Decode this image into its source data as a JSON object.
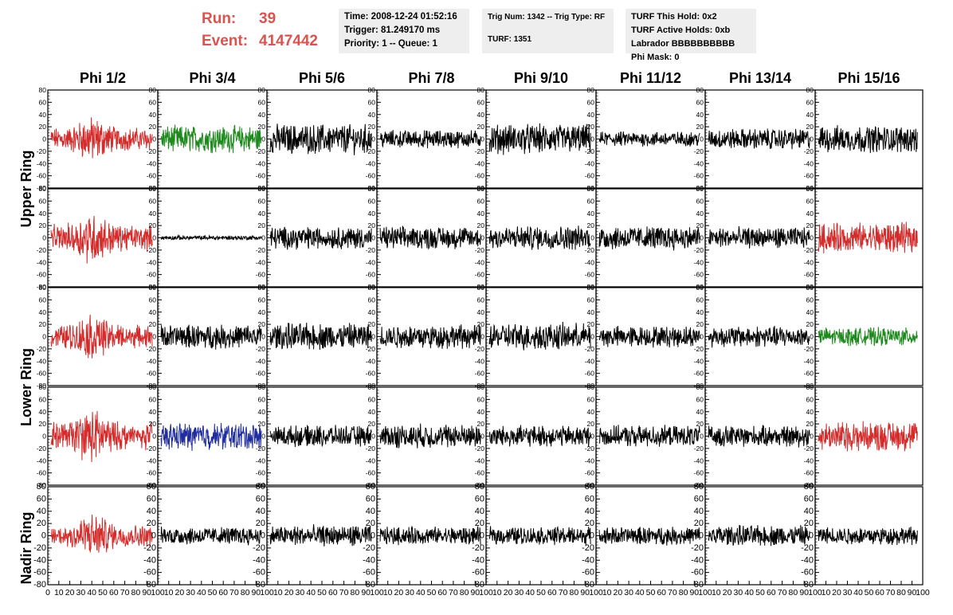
{
  "header": {
    "run_label": "Run:",
    "run_value": "39",
    "event_label": "Event:",
    "event_value": "4147442",
    "time": "Time: 2008-12-24 01:52:16",
    "trigger": "Trigger: 81.249170 ms",
    "priority": "Priority: 1 -- Queue: 1",
    "trig_num": "Trig Num: 1342 -- Trig Type: RF",
    "turf": "TURF: 1351",
    "turf_hold": "TURF This Hold: 0x2",
    "turf_active": "TURF Active Holds: 0xb",
    "labrador": "Labrador BBBBBBBBBB",
    "phi_mask": "Phi Mask: 0"
  },
  "colors": {
    "red": "#d42b2b",
    "green": "#1e8a1e",
    "blue": "#1f2d9e",
    "black": "#000000",
    "header_text": "#d9534f",
    "box_bg": "#eeeeee"
  },
  "chart_data": {
    "type": "line",
    "columns": [
      "Phi 1/2",
      "Phi 3/4",
      "Phi 5/6",
      "Phi 7/8",
      "Phi 9/10",
      "Phi 11/12",
      "Phi 13/14",
      "Phi 15/16"
    ],
    "rows": [
      "Upper Ring",
      "",
      "Lower Ring",
      "",
      "Nadir Ring"
    ],
    "ylim": [
      -80,
      80
    ],
    "yticks": [
      -80,
      -60,
      -40,
      -20,
      0,
      20,
      40,
      60,
      80
    ],
    "xlim": [
      0,
      100
    ],
    "xtick_labels": [
      "0",
      "10",
      "20",
      "30",
      "40",
      "50",
      "60",
      "70",
      "80",
      "90",
      "100"
    ],
    "trace_colors": [
      [
        "red",
        "green",
        "black",
        "black",
        "black",
        "black",
        "black",
        "black"
      ],
      [
        "red",
        "black",
        "black",
        "black",
        "black",
        "black",
        "black",
        "red"
      ],
      [
        "red",
        "black",
        "black",
        "black",
        "black",
        "black",
        "black",
        "green"
      ],
      [
        "red",
        "blue",
        "black",
        "black",
        "black",
        "black",
        "black",
        "red"
      ],
      [
        "red",
        "black",
        "black",
        "black",
        "black",
        "black",
        "black",
        "black"
      ]
    ],
    "trace_amplitude": [
      [
        22,
        18,
        20,
        12,
        20,
        10,
        14,
        18
      ],
      [
        25,
        3,
        15,
        15,
        16,
        16,
        14,
        20
      ],
      [
        22,
        16,
        18,
        16,
        18,
        14,
        14,
        12
      ],
      [
        26,
        18,
        14,
        16,
        14,
        14,
        14,
        20
      ],
      [
        22,
        12,
        14,
        12,
        12,
        12,
        14,
        12
      ]
    ],
    "grid": false
  }
}
